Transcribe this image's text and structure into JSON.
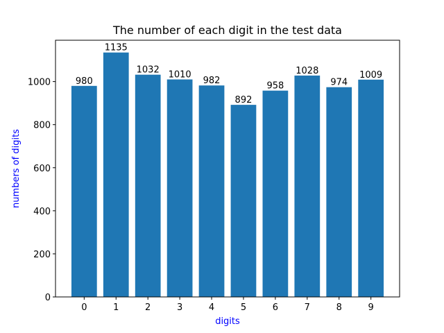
{
  "chart_data": {
    "type": "bar",
    "title": "The number of each digit in the test data",
    "xlabel": "digits",
    "ylabel": "numbers of digits",
    "categories": [
      "0",
      "1",
      "2",
      "3",
      "4",
      "5",
      "6",
      "7",
      "8",
      "9"
    ],
    "values": [
      980,
      1135,
      1032,
      1010,
      982,
      892,
      958,
      1028,
      974,
      1009
    ],
    "ylim": [
      0,
      1192
    ],
    "yticks": [
      0,
      200,
      400,
      600,
      800,
      1000
    ],
    "grid": false,
    "legend": "none",
    "colors": {
      "bar": "#1f77b4",
      "axis_label": "#0000ff",
      "text": "#000000"
    }
  }
}
